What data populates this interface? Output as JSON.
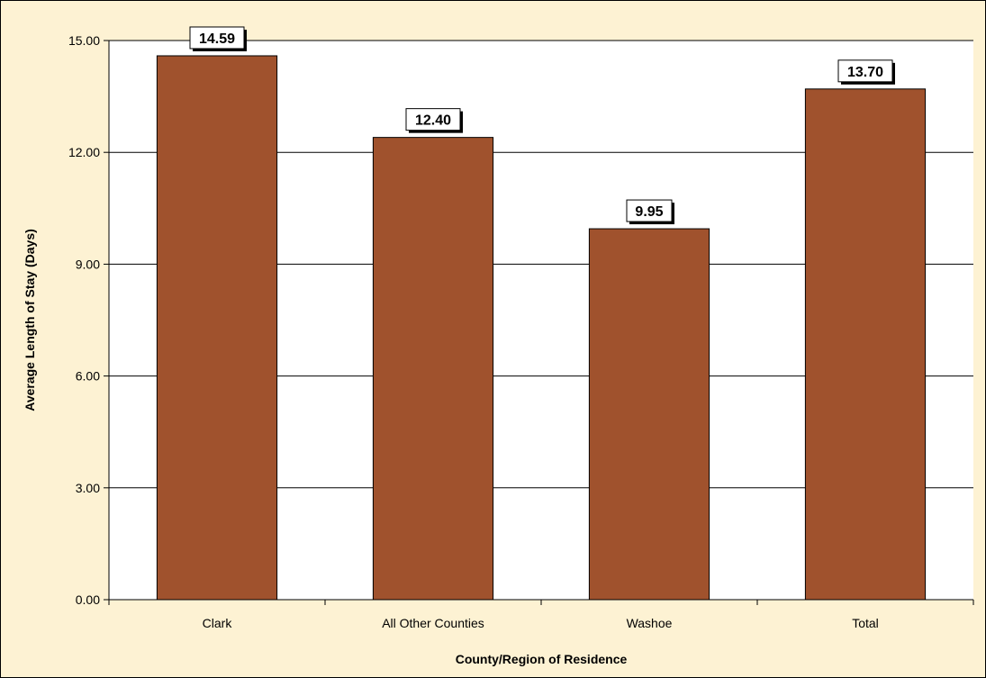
{
  "chart_data": {
    "type": "bar",
    "title": "",
    "categories": [
      "Clark",
      "All Other Counties",
      "Washoe",
      "Total"
    ],
    "values": [
      14.59,
      12.4,
      9.95,
      13.7
    ],
    "data_labels": [
      "14.59",
      "12.40",
      "9.95",
      "13.70"
    ],
    "xlabel": "County/Region of Residence",
    "ylabel": "Average Length of Stay (Days)",
    "ylim": [
      0,
      15
    ],
    "yticks": [
      0,
      3,
      6,
      9,
      12,
      15
    ],
    "ytick_labels": [
      "0.00",
      "3.00",
      "6.00",
      "9.00",
      "12.00",
      "15.00"
    ],
    "grid": true,
    "legend": "none"
  },
  "colors": {
    "bar": "#a0522d",
    "chart_background": "#fdf2d3",
    "plot_background": "#ffffff",
    "gridline": "#000000"
  }
}
